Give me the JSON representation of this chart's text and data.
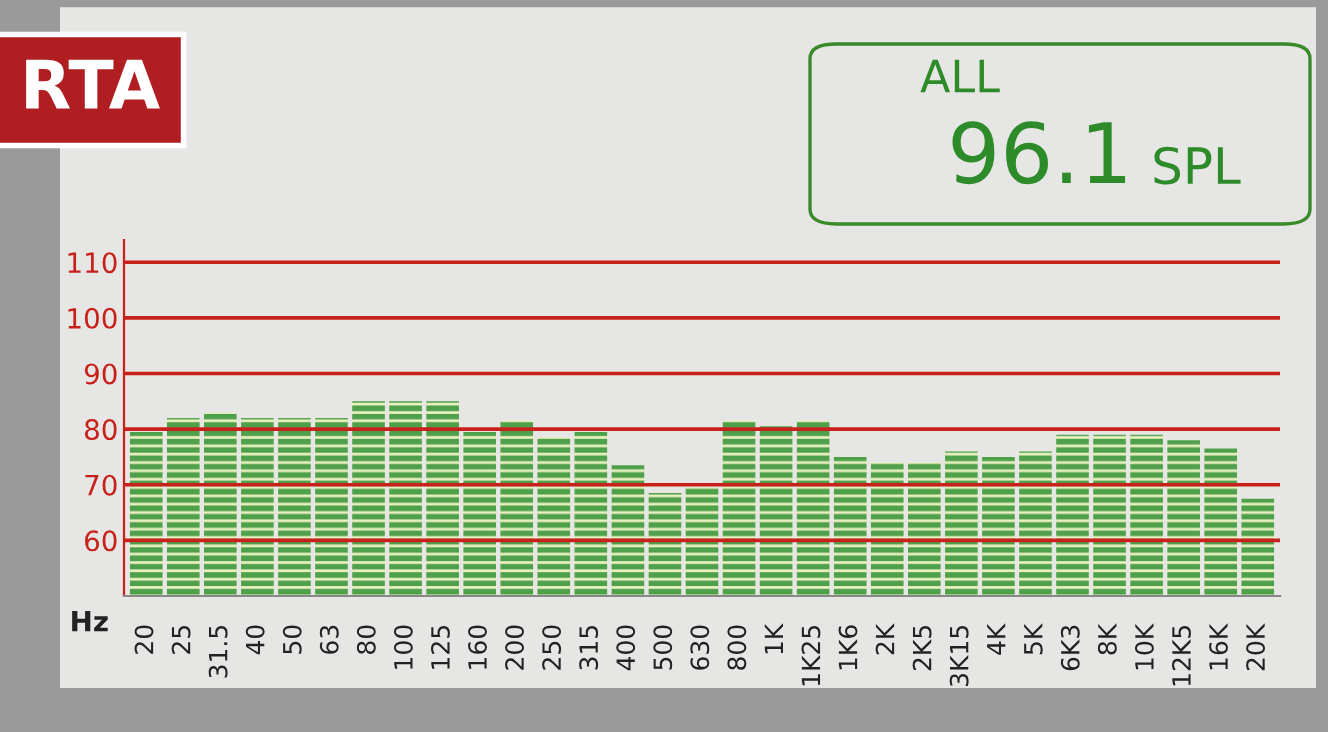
{
  "chart_data": {
    "type": "bar",
    "title": "RTA",
    "xlabel": "Hz",
    "categories": [
      "20",
      "25",
      "31.5",
      "40",
      "50",
      "63",
      "80",
      "100",
      "125",
      "160",
      "200",
      "250",
      "315",
      "400",
      "500",
      "630",
      "800",
      "1K",
      "1K25",
      "1K6",
      "2K",
      "2K5",
      "3K15",
      "4K",
      "5K",
      "6K3",
      "8K",
      "10K",
      "12K5",
      "16K",
      "20K"
    ],
    "values": [
      79.5,
      82,
      83,
      82,
      82,
      82,
      85,
      85,
      85,
      79.5,
      81.5,
      78.5,
      79.5,
      73.5,
      68.5,
      69.5,
      81.5,
      80.5,
      81.5,
      75,
      74,
      74,
      76,
      75,
      76,
      79,
      79,
      79,
      78,
      76.5,
      67.5
    ],
    "color": "#4fa04a",
    "ylim": [
      50,
      114
    ],
    "yticks": [
      60,
      70,
      80,
      90,
      100,
      110
    ],
    "grid": "y",
    "annotations": [
      "ALL",
      "96.1",
      "SPL"
    ]
  }
}
